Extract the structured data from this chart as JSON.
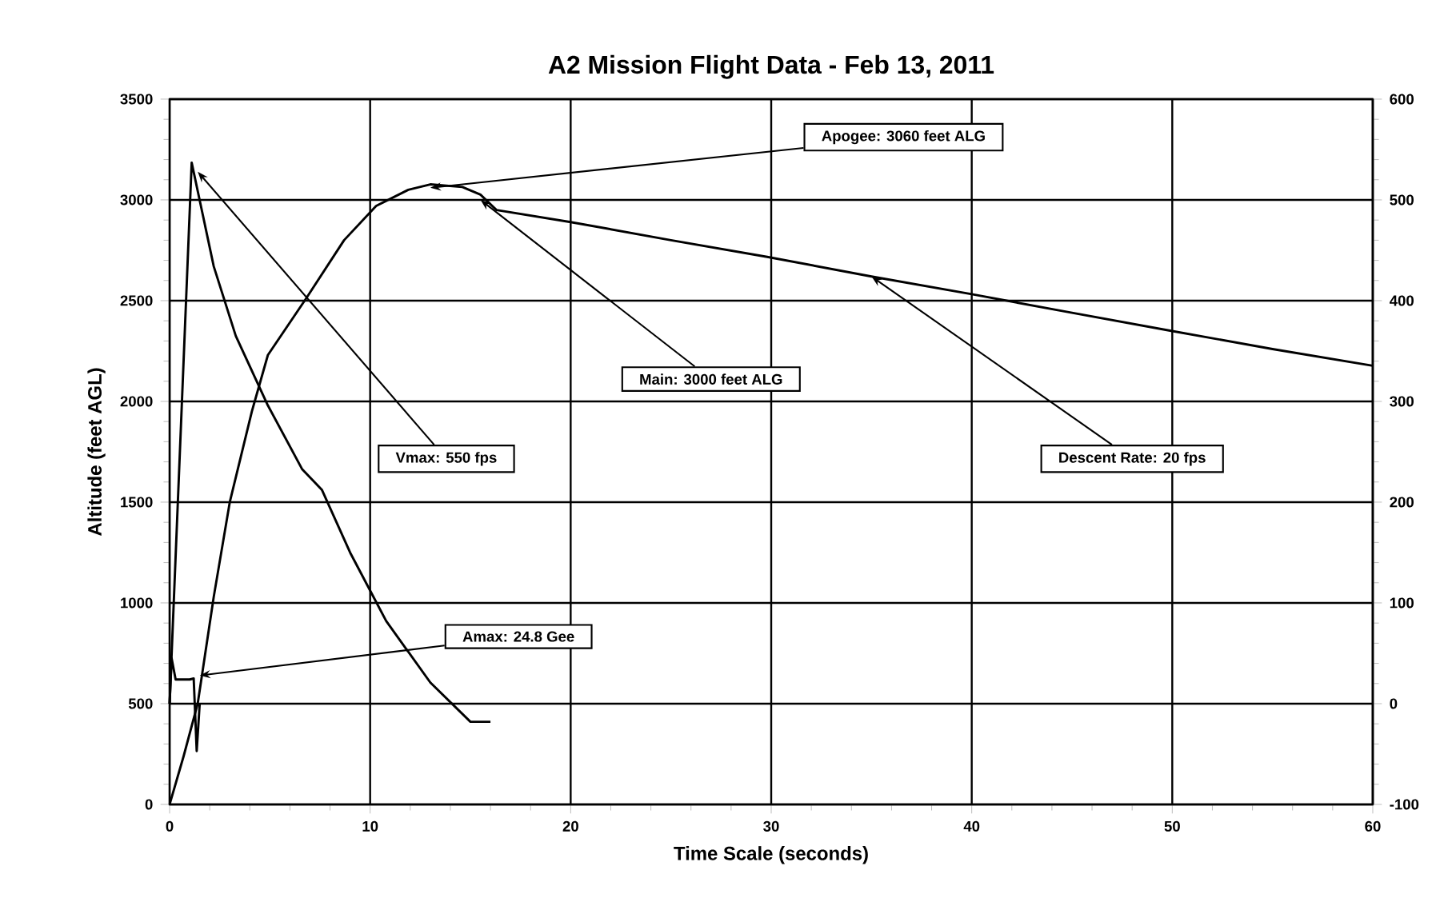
{
  "chart_data": {
    "type": "line",
    "title": "A2 Mission Flight Data - Feb 13, 2011",
    "xlabel": "Time Scale (seconds)",
    "ylabel": "Altitude (feet AGL)",
    "xlim": [
      0,
      60
    ],
    "xticks": [
      0,
      10,
      20,
      30,
      40,
      50,
      60
    ],
    "ylim": [
      0,
      3500
    ],
    "yticks": [
      0,
      500,
      1000,
      1500,
      2000,
      2500,
      3000,
      3500
    ],
    "y2lim": [
      -100,
      600
    ],
    "y2ticks": [
      -100,
      0,
      100,
      200,
      300,
      400,
      500,
      600
    ],
    "grid": true,
    "series": [
      {
        "color": "#000000",
        "x": [
          0,
          0.7,
          1.4,
          2.2,
          3.0,
          4.1,
          4.9,
          6.8,
          8.7,
          10.3,
          11.9,
          13,
          14.6,
          15.5,
          16.3,
          20,
          25,
          29.8,
          35,
          40,
          45,
          50,
          55,
          60
        ],
        "values": [
          0,
          240,
          500,
          1030,
          1500,
          1950,
          2230,
          2510,
          2800,
          2970,
          3050,
          3077,
          3064,
          3026,
          2950,
          2890,
          2800,
          2717,
          2620,
          2532,
          2440,
          2349,
          2260,
          2177
        ]
      },
      {
        "color": "#000000",
        "axis": "y2",
        "x": [
          0,
          1.1,
          2.2,
          3.3,
          4.9,
          6.6,
          7.6,
          9.0,
          10.8,
          13,
          15,
          16
        ],
        "values": [
          0,
          537,
          434,
          365,
          296,
          233,
          212,
          150,
          82,
          21,
          -18,
          -18
        ]
      },
      {
        "color": "#000000",
        "axis": "y2",
        "x": [
          0,
          0.1,
          0.3,
          1.0,
          1.2,
          1.35,
          1.5
        ],
        "values": [
          0,
          45,
          24,
          24,
          25,
          -47,
          0
        ]
      }
    ],
    "annotations": [
      {
        "text": "Apogee: 3060 feet ALG",
        "x": 13,
        "y": 3060
      },
      {
        "text": "Main: 3000 feet ALG",
        "x": 15.5,
        "y": 3000
      },
      {
        "text": "Vmax: 550 fps",
        "x": 1.4,
        "y": 3140
      },
      {
        "text": "Descent Rate: 20 fps",
        "x": 35,
        "y": 2620
      },
      {
        "text": "Amax: 24.8 Gee",
        "x": 1.5,
        "y": 640
      }
    ]
  }
}
